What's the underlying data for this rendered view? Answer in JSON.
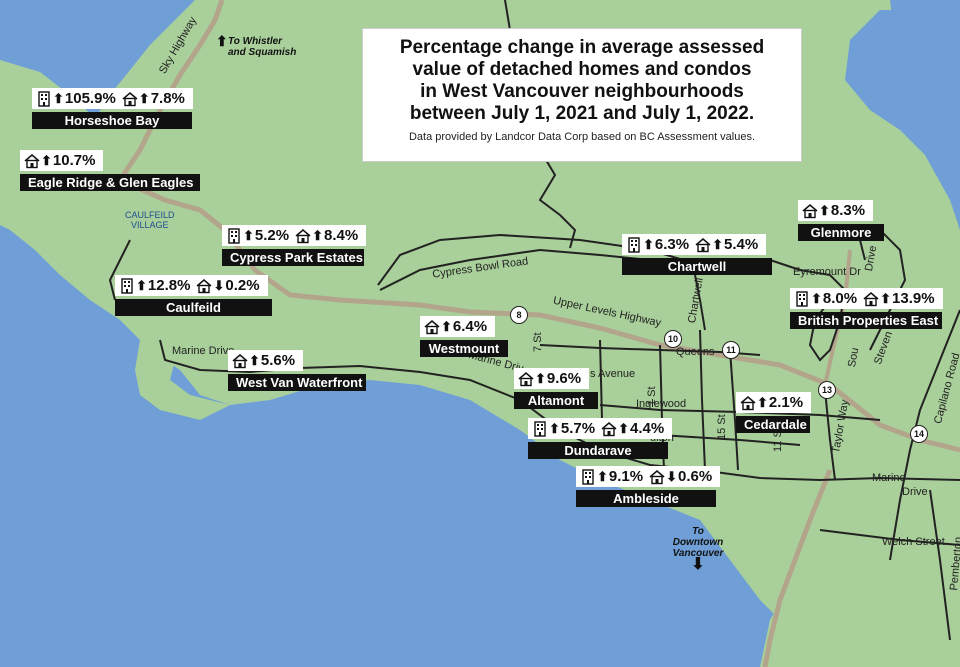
{
  "title": "Percentage change in average assessed value of detached homes and condos in West Vancouver neighbourhoods between July 1, 2021 and July 1, 2022.",
  "title_lines": [
    "Percentage change in average assessed",
    "value of detached homes and condos",
    "in West Vancouver neighbourhoods",
    "between July 1, 2021 and July 1, 2022."
  ],
  "source": "Data provided by Landcor Data Corp based on BC Assessment values.",
  "colors": {
    "water": "#6f9fd6",
    "land": "#a9cf9a",
    "road": "#222222",
    "highway": "#b3a58c",
    "label_bg": "#111111"
  },
  "directions": {
    "whistler": "To Whistler and Squamish",
    "whistler_lines": [
      "To Whistler",
      "and Squamish"
    ],
    "downtown": "To Downtown Vancouver",
    "downtown_lines": [
      "To Downtown",
      "Vancouver"
    ]
  },
  "village": [
    "CAULFEILD",
    "VILLAGE"
  ],
  "roads": {
    "sky_highway": "Sky Highway",
    "cypress_bowl": "Cypress Bowl Road",
    "upper_levels": "Upper Levels Highway",
    "marine_drive_west": "Marine Drive",
    "marine_drive_mid": "Marine Driv",
    "marine_drive_east": "Marine",
    "marine_drive_east2": "Drive",
    "queens": "Queens",
    "avenue": "s Avenue",
    "inglewood": "Inglewood",
    "fulton": "ulton",
    "st7": "7 St",
    "st11a": "11",
    "st11b": "St",
    "st15a": "15",
    "st15b": "St",
    "st21": "1 St",
    "chartwell": "Chartwell",
    "eyremount": "Eyremount Dr",
    "stevens": "Steven",
    "capilano": "Capilano Road",
    "taylor": "Taylor",
    "way": "Way",
    "welch": "Welch Street",
    "pemberton": "Pemberton",
    "drive": "Drive",
    "sou": "Sou"
  },
  "shields": [
    "8",
    "10",
    "11",
    "13",
    "14"
  ],
  "neighbourhoods": [
    {
      "name": "Horseshoe Bay",
      "values": [
        {
          "type": "condo",
          "dir": "up",
          "pct": "105.9%"
        },
        {
          "type": "house",
          "dir": "up",
          "pct": "7.8%"
        }
      ]
    },
    {
      "name": "Eagle Ridge & Glen Eagles",
      "values": [
        {
          "type": "house",
          "dir": "up",
          "pct": "10.7%"
        }
      ]
    },
    {
      "name": "Cypress Park Estates",
      "values": [
        {
          "type": "condo",
          "dir": "up",
          "pct": "5.2%"
        },
        {
          "type": "house",
          "dir": "up",
          "pct": "8.4%"
        }
      ]
    },
    {
      "name": "Caulfeild",
      "values": [
        {
          "type": "condo",
          "dir": "up",
          "pct": "12.8%"
        },
        {
          "type": "house",
          "dir": "down",
          "pct": "0.2%"
        }
      ]
    },
    {
      "name": "West Van Waterfront",
      "values": [
        {
          "type": "house",
          "dir": "up",
          "pct": "5.6%"
        }
      ]
    },
    {
      "name": "Westmount",
      "values": [
        {
          "type": "house",
          "dir": "up",
          "pct": "6.4%"
        }
      ]
    },
    {
      "name": "Altamont",
      "values": [
        {
          "type": "house",
          "dir": "up",
          "pct": "9.6%"
        }
      ]
    },
    {
      "name": "Dundarave",
      "values": [
        {
          "type": "condo",
          "dir": "up",
          "pct": "5.7%"
        },
        {
          "type": "house",
          "dir": "up",
          "pct": "4.4%"
        }
      ]
    },
    {
      "name": "Ambleside",
      "values": [
        {
          "type": "condo",
          "dir": "up",
          "pct": "9.1%"
        },
        {
          "type": "house",
          "dir": "down",
          "pct": "0.6%"
        }
      ]
    },
    {
      "name": "Cedardale",
      "values": [
        {
          "type": "house",
          "dir": "up",
          "pct": "2.1%"
        }
      ]
    },
    {
      "name": "Chartwell",
      "values": [
        {
          "type": "condo",
          "dir": "up",
          "pct": "6.3%"
        },
        {
          "type": "house",
          "dir": "up",
          "pct": "5.4%"
        }
      ]
    },
    {
      "name": "Glenmore",
      "values": [
        {
          "type": "house",
          "dir": "up",
          "pct": "8.3%"
        }
      ]
    },
    {
      "name": "British Properties East",
      "values": [
        {
          "type": "condo",
          "dir": "up",
          "pct": "8.0%"
        },
        {
          "type": "house",
          "dir": "up",
          "pct": "13.9%"
        }
      ]
    }
  ]
}
